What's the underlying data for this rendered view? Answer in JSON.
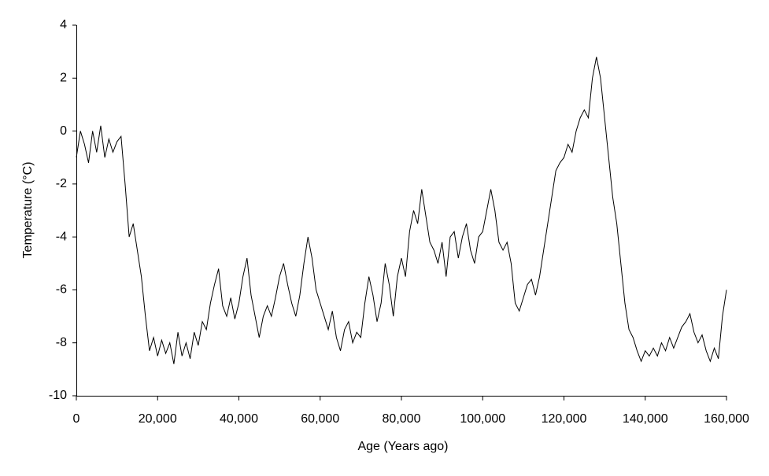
{
  "chart_data": {
    "type": "line",
    "xlabel": "Age (Years ago)",
    "ylabel": "Temperature (°C)",
    "xlim": [
      0,
      160000
    ],
    "ylim": [
      -10,
      4
    ],
    "xticks": [
      0,
      {
        "value": 20000,
        "label": "20,000"
      },
      {
        "value": 40000,
        "label": "40,000"
      },
      {
        "value": 60000,
        "label": "60,000"
      },
      {
        "value": 80000,
        "label": "80,000"
      },
      {
        "value": 100000,
        "label": "100,000"
      },
      {
        "value": 120000,
        "label": "120,000"
      },
      {
        "value": 140000,
        "label": "140,000"
      },
      {
        "value": 160000,
        "label": "160,000"
      }
    ],
    "yticks": [
      -10,
      -8,
      -6,
      -4,
      -2,
      0,
      2,
      4
    ],
    "grid": false,
    "x": [
      0,
      1000,
      2000,
      3000,
      4000,
      5000,
      6000,
      7000,
      8000,
      9000,
      10000,
      11000,
      12000,
      13000,
      14000,
      15000,
      16000,
      17000,
      18000,
      19000,
      20000,
      21000,
      22000,
      23000,
      24000,
      25000,
      26000,
      27000,
      28000,
      29000,
      30000,
      31000,
      32000,
      33000,
      34000,
      35000,
      36000,
      37000,
      38000,
      39000,
      40000,
      41000,
      42000,
      43000,
      44000,
      45000,
      46000,
      47000,
      48000,
      49000,
      50000,
      51000,
      52000,
      53000,
      54000,
      55000,
      56000,
      57000,
      58000,
      59000,
      60000,
      61000,
      62000,
      63000,
      64000,
      65000,
      66000,
      67000,
      68000,
      69000,
      70000,
      71000,
      72000,
      73000,
      74000,
      75000,
      76000,
      77000,
      78000,
      79000,
      80000,
      81000,
      82000,
      83000,
      84000,
      85000,
      86000,
      87000,
      88000,
      89000,
      90000,
      91000,
      92000,
      93000,
      94000,
      95000,
      96000,
      97000,
      98000,
      99000,
      100000,
      101000,
      102000,
      103000,
      104000,
      105000,
      106000,
      107000,
      108000,
      109000,
      110000,
      111000,
      112000,
      113000,
      114000,
      115000,
      116000,
      117000,
      118000,
      119000,
      120000,
      121000,
      122000,
      123000,
      124000,
      125000,
      126000,
      127000,
      128000,
      129000,
      130000,
      131000,
      132000,
      133000,
      134000,
      135000,
      136000,
      137000,
      138000,
      139000,
      140000,
      141000,
      142000,
      143000,
      144000,
      145000,
      146000,
      147000,
      148000,
      149000,
      150000,
      151000,
      152000,
      153000,
      154000,
      155000,
      156000,
      157000,
      158000,
      159000,
      160000
    ],
    "series": [
      {
        "name": "Temperature",
        "color": "#000000",
        "values": [
          -1,
          0,
          -0.5,
          -1.2,
          0,
          -0.8,
          0.2,
          -1,
          -0.3,
          -0.8,
          -0.4,
          -0.2,
          -2,
          -4,
          -3.5,
          -4.5,
          -5.5,
          -7,
          -8.3,
          -7.8,
          -8.5,
          -7.9,
          -8.4,
          -8,
          -8.8,
          -7.6,
          -8.5,
          -8,
          -8.6,
          -7.6,
          -8.1,
          -7.2,
          -7.5,
          -6.5,
          -5.8,
          -5.2,
          -6.6,
          -7,
          -6.3,
          -7.1,
          -6.5,
          -5.5,
          -4.8,
          -6.2,
          -7,
          -7.8,
          -7,
          -6.6,
          -7,
          -6.3,
          -5.5,
          -5,
          -5.8,
          -6.5,
          -7,
          -6.2,
          -5,
          -4,
          -4.8,
          -6,
          -6.5,
          -7,
          -7.5,
          -6.8,
          -7.8,
          -8.3,
          -7.5,
          -7.2,
          -8,
          -7.6,
          -7.8,
          -6.5,
          -5.5,
          -6.2,
          -7.2,
          -6.5,
          -5,
          -5.8,
          -7,
          -5.5,
          -4.8,
          -5.5,
          -3.8,
          -3,
          -3.5,
          -2.2,
          -3.2,
          -4.2,
          -4.5,
          -5,
          -4.2,
          -5.5,
          -4,
          -3.8,
          -4.8,
          -4,
          -3.5,
          -4.5,
          -5,
          -4,
          -3.8,
          -3,
          -2.2,
          -3,
          -4.2,
          -4.5,
          -4.2,
          -5,
          -6.5,
          -6.8,
          -6.3,
          -5.8,
          -5.6,
          -6.2,
          -5.5,
          -4.5,
          -3.5,
          -2.5,
          -1.5,
          -1.2,
          -1,
          -0.5,
          -0.8,
          0,
          0.5,
          0.8,
          0.5,
          2,
          2.8,
          2,
          0.5,
          -1,
          -2.5,
          -3.5,
          -5,
          -6.5,
          -7.5,
          -7.8,
          -8.3,
          -8.7,
          -8.3,
          -8.5,
          -8.2,
          -8.5,
          -8,
          -8.3,
          -7.8,
          -8.2,
          -7.8,
          -7.4,
          -7.2,
          -6.9,
          -7.6,
          -8,
          -7.7,
          -8.3,
          -8.7,
          -8.2,
          -8.6,
          -7,
          -6
        ]
      }
    ]
  }
}
